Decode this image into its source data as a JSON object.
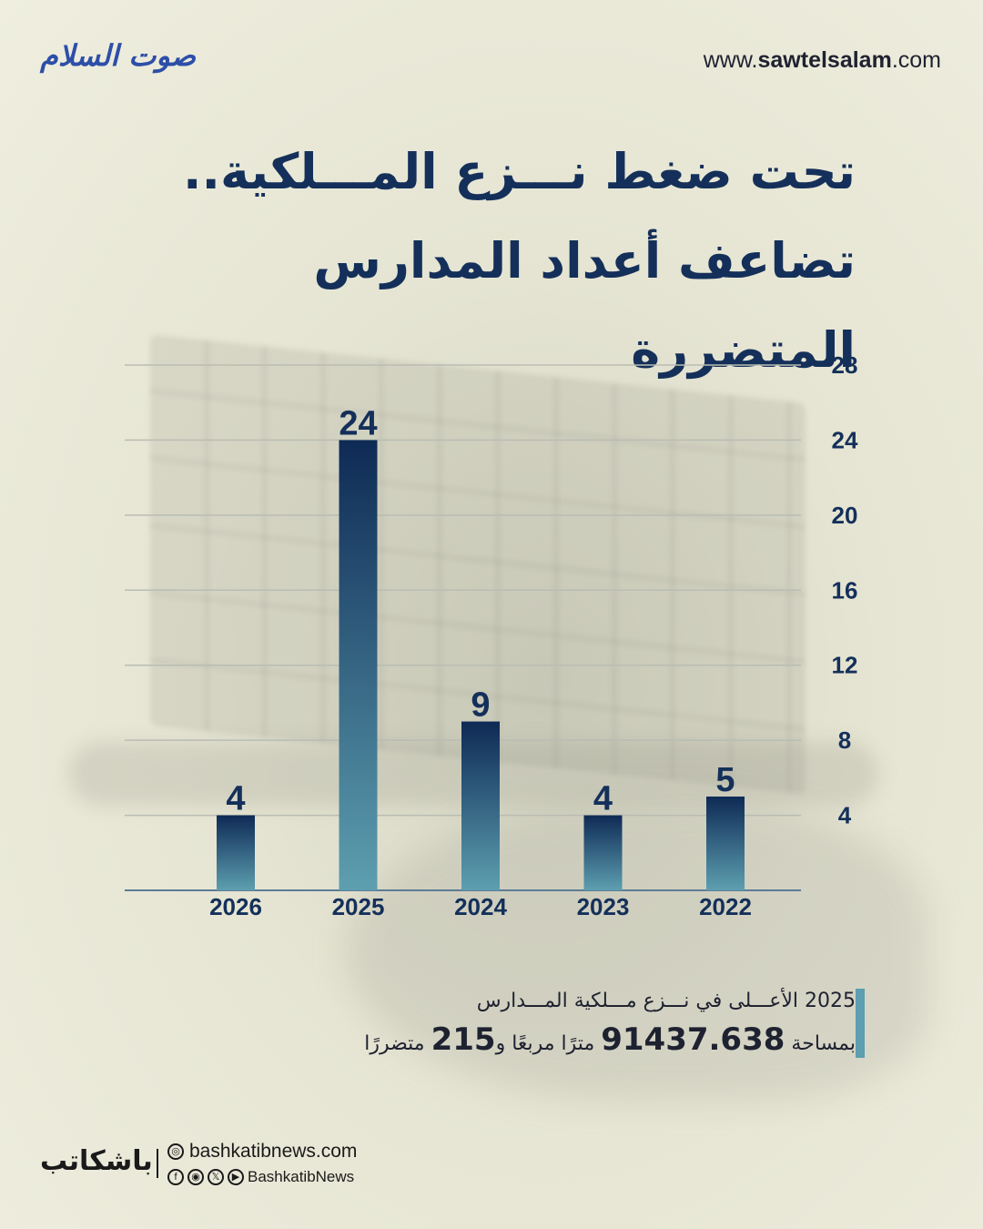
{
  "header": {
    "logo_text": "صوت السلام",
    "site_prefix": "www.",
    "site_domain": "sawtelsalam",
    "site_suffix": ".com"
  },
  "title": {
    "line1": "تحت ضغط نـــزع المـــلكية..",
    "line2": "تضاعف أعداد المدارس المتضررة"
  },
  "chart_data": {
    "type": "bar",
    "categories": [
      "2026",
      "2025",
      "2024",
      "2023",
      "2022"
    ],
    "values": [
      4,
      24,
      9,
      4,
      5
    ],
    "data_labels": [
      "4",
      "24",
      "9",
      "4",
      "5"
    ],
    "yticks": [
      "4",
      "8",
      "12",
      "16",
      "20",
      "24",
      "28"
    ],
    "ylim": [
      0,
      28
    ],
    "y_axis_side": "right",
    "grid": true,
    "bar_gradient": [
      "#0e2a55",
      "#5d9fb0"
    ],
    "title": "",
    "xlabel": "",
    "ylabel": ""
  },
  "note": {
    "line1": "2025 الأعـــلى في نـــزع مـــلكية المـــدارس",
    "line2_start": "بمساحة",
    "area": "91437.638",
    "line2_mid": "مترًا مربعًا و",
    "count": "215",
    "line2_end": "متضررًا"
  },
  "footer": {
    "brand": "باشكاتب",
    "website": "bashkatibnews.com",
    "handle": "BashkatibNews",
    "social_icons": [
      "facebook-icon",
      "instagram-icon",
      "x-icon",
      "youtube-icon"
    ]
  }
}
